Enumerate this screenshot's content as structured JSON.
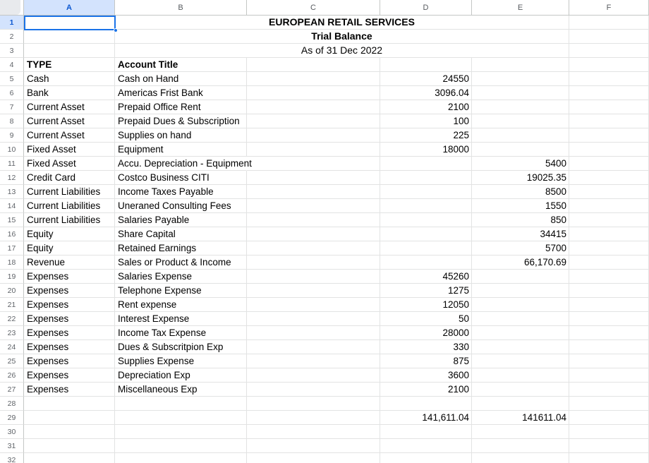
{
  "sheet": {
    "selected_cell": "A1",
    "row_count": 32,
    "column_headers": [
      "A",
      "B",
      "C",
      "D",
      "E",
      "F"
    ],
    "colors": {
      "selection_blue": "#1a73e8",
      "selected_header_bg": "#d3e3fd",
      "selected_header_text": "#0b57d0",
      "gridline": "#e2e3e3",
      "header_border": "#c4c7c5",
      "header_text": "#575b5f",
      "cell_text": "#000000"
    },
    "rows": [
      {
        "num": 1,
        "b": "EUROPEAN RETAIL SERVICES",
        "merge_b_to_e": true,
        "bold": true
      },
      {
        "num": 2,
        "b": "Trial Balance",
        "merge_b_to_e": true,
        "bold": true
      },
      {
        "num": 3,
        "b": "As of 31 Dec 2022",
        "merge_b_to_e": true,
        "bold": false
      },
      {
        "num": 4,
        "a": "TYPE",
        "b": "Account Title",
        "bold": true
      },
      {
        "num": 5,
        "a": "Cash",
        "b": "Cash on Hand",
        "d": "24550"
      },
      {
        "num": 6,
        "a": "Bank",
        "b": "Americas Frist Bank",
        "d": "3096.04"
      },
      {
        "num": 7,
        "a": "Current Asset",
        "b": "Prepaid Office Rent",
        "d": "2100"
      },
      {
        "num": 8,
        "a": "Current Asset",
        "b": "Prepaid Dues & Subscription",
        "d": "100"
      },
      {
        "num": 9,
        "a": "Current Asset",
        "b": "Supplies on hand",
        "d": "225"
      },
      {
        "num": 10,
        "a": "Fixed Asset",
        "b": "Equipment",
        "d": "18000"
      },
      {
        "num": 11,
        "a": "Fixed Asset",
        "b": "Accu. Depreciation - Equipment",
        "e": "5400",
        "spill_b": true
      },
      {
        "num": 12,
        "a": "Credit Card",
        "b": "Costco Business CITI",
        "e": "19025.35"
      },
      {
        "num": 13,
        "a": "Current Liabilities",
        "b": "Income Taxes Payable",
        "e": "8500"
      },
      {
        "num": 14,
        "a": "Current Liabilities",
        "b": "Uneraned Consulting Fees",
        "e": "1550"
      },
      {
        "num": 15,
        "a": "Current Liabilities",
        "b": "Salaries Payable",
        "e": "850"
      },
      {
        "num": 16,
        "a": "Equity",
        "b": "Share Capital",
        "e": "34415"
      },
      {
        "num": 17,
        "a": "Equity",
        "b": "Retained Earnings",
        "e": "5700"
      },
      {
        "num": 18,
        "a": "Revenue",
        "b": "Sales or Product & Income",
        "e": "66,170.69"
      },
      {
        "num": 19,
        "a": "Expenses",
        "b": "Salaries Expense",
        "d": "45260"
      },
      {
        "num": 20,
        "a": "Expenses",
        "b": "Telephone Expense",
        "d": "1275"
      },
      {
        "num": 21,
        "a": "Expenses",
        "b": "Rent expense",
        "d": "12050"
      },
      {
        "num": 22,
        "a": "Expenses",
        "b": "Interest Expense",
        "d": "50"
      },
      {
        "num": 23,
        "a": "Expenses",
        "b": "Income Tax Expense",
        "d": "28000"
      },
      {
        "num": 24,
        "a": "Expenses",
        "b": "Dues & Subscritpion Exp",
        "d": "330"
      },
      {
        "num": 25,
        "a": "Expenses",
        "b": "Supplies Expense",
        "d": "875"
      },
      {
        "num": 26,
        "a": "Expenses",
        "b": "Depreciation Exp",
        "d": "3600"
      },
      {
        "num": 27,
        "a": "Expenses",
        "b": "Miscellaneous Exp",
        "d": "2100"
      },
      {
        "num": 29,
        "d": "141,611.04",
        "e": "141611.04"
      }
    ]
  }
}
